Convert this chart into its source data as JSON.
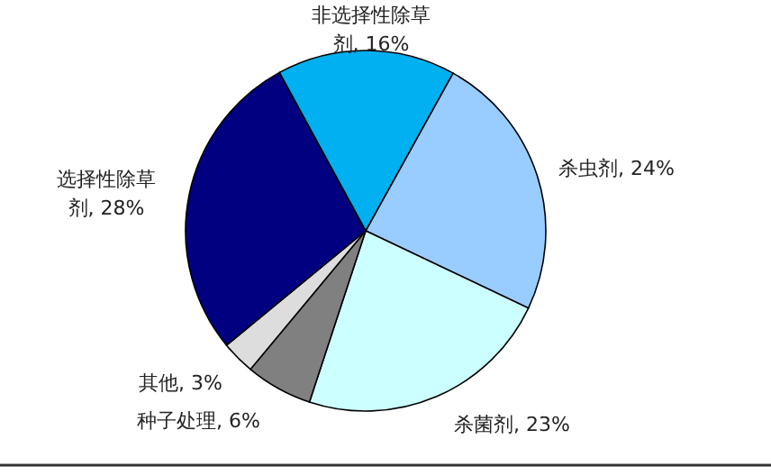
{
  "chart_data": {
    "type": "pie",
    "categories": [
      "杀虫剂",
      "杀菌剂",
      "种子处理",
      "其他",
      "选择性除草剂",
      "非选择性除草剂"
    ],
    "values": [
      24,
      23,
      6,
      3,
      28,
      16
    ],
    "value_labels": [
      "24%",
      "23%",
      "6%",
      "3%",
      "28%",
      "16%"
    ],
    "colors": [
      "#99ccff",
      "#ccffff",
      "#808080",
      "#dddddd",
      "#000080",
      "#00b0f0"
    ]
  }
}
